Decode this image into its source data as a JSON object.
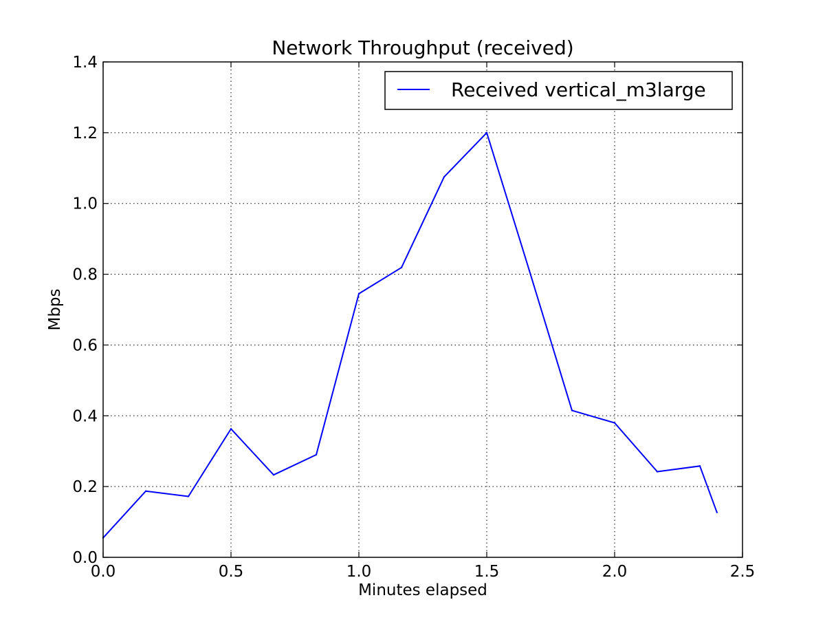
{
  "chart_data": {
    "type": "line",
    "title": "Network Throughput (received)",
    "xlabel": "Minutes elapsed",
    "ylabel": "Mbps",
    "xlim": [
      0.0,
      2.5
    ],
    "ylim": [
      0.0,
      1.4
    ],
    "x_ticks": [
      0.0,
      0.5,
      1.0,
      1.5,
      2.0,
      2.5
    ],
    "x_tick_labels": [
      "0.0",
      "0.5",
      "1.0",
      "1.5",
      "2.0",
      "2.5"
    ],
    "y_ticks": [
      0.0,
      0.2,
      0.4,
      0.6,
      0.8,
      1.0,
      1.2,
      1.4
    ],
    "y_tick_labels": [
      "0.0",
      "0.2",
      "0.4",
      "0.6",
      "0.8",
      "1.0",
      "1.2",
      "1.4"
    ],
    "grid": true,
    "legend_position": "top-right",
    "series": [
      {
        "name": "Received vertical_m3large",
        "color": "#0000ff",
        "x": [
          0.0,
          0.1667,
          0.3333,
          0.5,
          0.6667,
          0.8333,
          1.0,
          1.1667,
          1.3333,
          1.5,
          1.6667,
          1.8333,
          2.0,
          2.1667,
          2.3333,
          2.4
        ],
        "y": [
          0.055,
          0.187,
          0.172,
          0.363,
          0.233,
          0.29,
          0.745,
          0.819,
          1.075,
          1.2,
          0.81,
          0.415,
          0.38,
          0.242,
          0.258,
          0.127
        ]
      }
    ]
  }
}
